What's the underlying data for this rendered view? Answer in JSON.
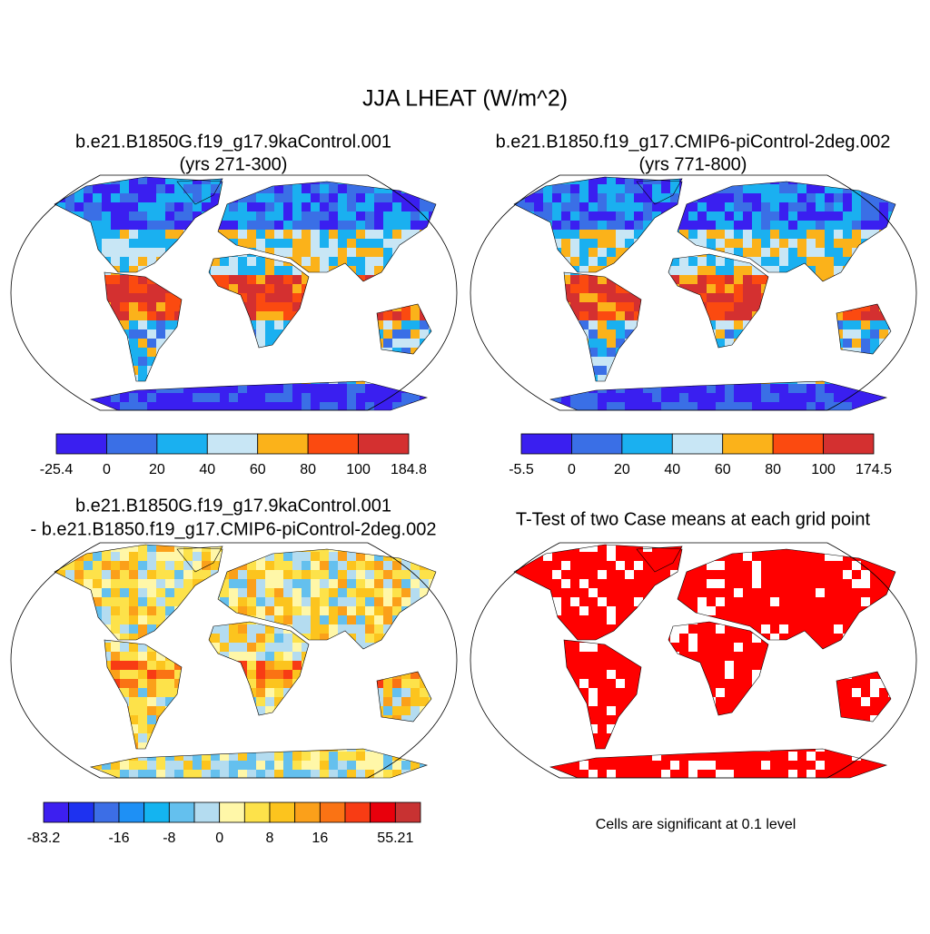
{
  "title": "JJA LHEAT (W/m^2)",
  "panels": [
    {
      "title": [
        "b.e21.B1850G.f19_g17.9kaControl.001",
        "(yrs 271-300)"
      ],
      "colorbar": {
        "colors": [
          "#3a1ff0",
          "#3a6fe6",
          "#1ab0f0",
          "#c8e6f5",
          "#fbb21a",
          "#fb4a10",
          "#d43030"
        ],
        "labels": [
          "-25.4",
          "0",
          "20",
          "40",
          "60",
          "80",
          "100",
          "184.8"
        ]
      }
    },
    {
      "title": [
        "b.e21.B1850.f19_g17.CMIP6-piControl-2deg.002",
        "(yrs 771-800)"
      ],
      "colorbar": {
        "colors": [
          "#3a1ff0",
          "#3a6fe6",
          "#1ab0f0",
          "#c8e6f5",
          "#fbb21a",
          "#fb4a10",
          "#d43030"
        ],
        "labels": [
          "-5.5",
          "0",
          "20",
          "40",
          "60",
          "80",
          "100",
          "174.5"
        ]
      }
    },
    {
      "title": [
        "b.e21.B1850G.f19_g17.9kaControl.001",
        "- b.e21.B1850.f19_g17.CMIP6-piControl-2deg.002"
      ],
      "colorbar": {
        "colors": [
          "#3d1ff0",
          "#1e32f0",
          "#3c6ee6",
          "#1e90f5",
          "#14b4f0",
          "#64c0ee",
          "#b4dcf0",
          "#fff7a8",
          "#fde24a",
          "#fcc41e",
          "#fba01a",
          "#fa7314",
          "#f83c14",
          "#e8000c",
          "#c83232"
        ],
        "labels": [
          "-83.2",
          null,
          null,
          "-16",
          null,
          "-8",
          null,
          "0",
          null,
          "8",
          null,
          "16",
          null,
          null,
          "55.21"
        ]
      }
    },
    {
      "title": [
        "T-Test of two Case means at each grid point"
      ],
      "note": "Cells are significant at 0.1 level",
      "color": "#ff0000"
    }
  ]
}
